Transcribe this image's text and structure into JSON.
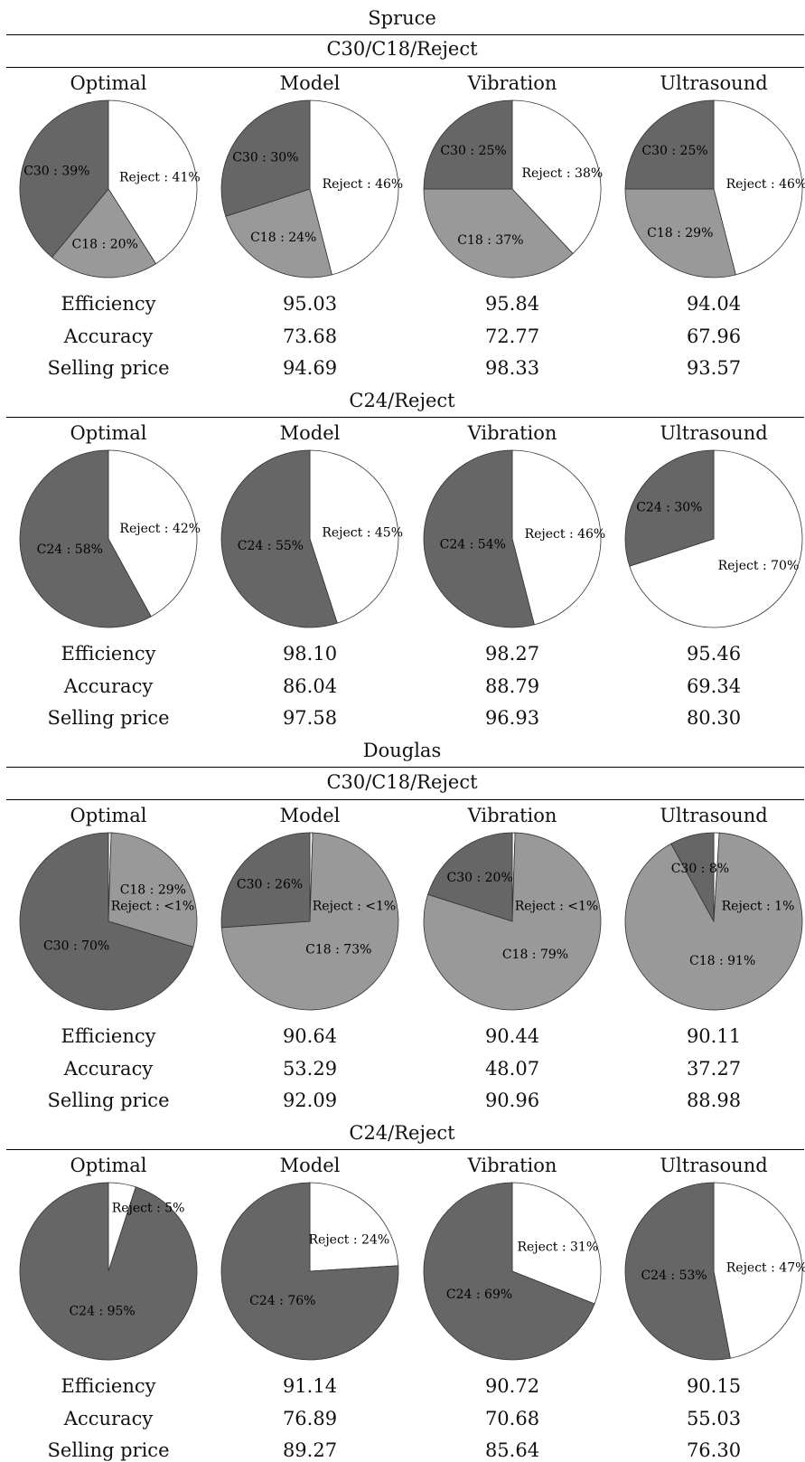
{
  "colors": {
    "C30": "#666666",
    "C24": "#666666",
    "C18": "#999999",
    "Reject": "#ffffff",
    "edge": "#333333"
  },
  "blocks": [
    {
      "species": "Spruce",
      "groups": [
        {
          "title": "C30/C18/Reject",
          "methods": [
            "Optimal",
            "Model",
            "Vibration",
            "Ultrasound"
          ],
          "metric_labels": [
            "Efficiency",
            "Accuracy",
            "Selling price"
          ],
          "metrics": [
            [
              "95.03",
              "95.84",
              "94.04"
            ],
            [
              "73.68",
              "72.77",
              "67.96"
            ],
            [
              "94.69",
              "98.33",
              "93.57"
            ]
          ]
        },
        {
          "title": "C24/Reject",
          "methods": [
            "Optimal",
            "Model",
            "Vibration",
            "Ultrasound"
          ],
          "metric_labels": [
            "Efficiency",
            "Accuracy",
            "Selling price"
          ],
          "metrics": [
            [
              "98.10",
              "98.27",
              "95.46"
            ],
            [
              "86.04",
              "88.79",
              "69.34"
            ],
            [
              "97.58",
              "96.93",
              "80.30"
            ]
          ]
        }
      ]
    },
    {
      "species": "Douglas",
      "groups": [
        {
          "title": "C30/C18/Reject",
          "methods": [
            "Optimal",
            "Model",
            "Vibration",
            "Ultrasound"
          ],
          "metric_labels": [
            "Efficiency",
            "Accuracy",
            "Selling price"
          ],
          "metrics": [
            [
              "90.64",
              "90.44",
              "90.11"
            ],
            [
              "53.29",
              "48.07",
              "37.27"
            ],
            [
              "92.09",
              "90.96",
              "88.98"
            ]
          ]
        },
        {
          "title": "C24/Reject",
          "methods": [
            "Optimal",
            "Model",
            "Vibration",
            "Ultrasound"
          ],
          "metric_labels": [
            "Efficiency",
            "Accuracy",
            "Selling price"
          ],
          "metrics": [
            [
              "91.14",
              "90.72",
              "90.15"
            ],
            [
              "76.89",
              "70.68",
              "55.03"
            ],
            [
              "89.27",
              "85.64",
              "76.30"
            ]
          ]
        }
      ]
    }
  ],
  "chart_data": [
    {
      "type": "pie",
      "series": [
        {
          "name": "Spruce C30/C18/Reject Optimal",
          "labels": [
            "Reject : 41%",
            "C18 : 20%",
            "C30 : 39%"
          ],
          "values": [
            41,
            20,
            39
          ]
        },
        {
          "name": "Spruce C30/C18/Reject Model",
          "labels": [
            "Reject : 46%",
            "C18 : 24%",
            "C30 : 30%"
          ],
          "values": [
            46,
            24,
            30
          ]
        },
        {
          "name": "Spruce C30/C18/Reject Vibration",
          "labels": [
            "Reject : 38%",
            "C18 : 37%",
            "C30 : 25%"
          ],
          "values": [
            38,
            37,
            25
          ]
        },
        {
          "name": "Spruce C30/C18/Reject Ultrasound",
          "labels": [
            "Reject : 46%",
            "C18 : 29%",
            "C30 : 25%"
          ],
          "values": [
            46,
            29,
            25
          ]
        }
      ]
    },
    {
      "type": "pie",
      "series": [
        {
          "name": "Spruce C24/Reject Optimal",
          "labels": [
            "Reject : 42%",
            "C24 : 58%"
          ],
          "values": [
            42,
            58
          ]
        },
        {
          "name": "Spruce C24/Reject Model",
          "labels": [
            "Reject : 45%",
            "C24 : 55%"
          ],
          "values": [
            45,
            55
          ]
        },
        {
          "name": "Spruce C24/Reject Vibration",
          "labels": [
            "Reject : 46%",
            "C24 : 54%"
          ],
          "values": [
            46,
            54
          ]
        },
        {
          "name": "Spruce C24/Reject Ultrasound",
          "labels": [
            "Reject : 70%",
            "C24 : 30%"
          ],
          "values": [
            70,
            30
          ]
        }
      ]
    },
    {
      "type": "pie",
      "series": [
        {
          "name": "Douglas C30/C18/Reject Optimal",
          "labels": [
            "Reject : <1%",
            "C18 : 29%",
            "C30 : 70%"
          ],
          "values": [
            0.5,
            29,
            70
          ]
        },
        {
          "name": "Douglas C30/C18/Reject Model",
          "labels": [
            "Reject : <1%",
            "C18 : 73%",
            "C30 : 26%"
          ],
          "values": [
            0.5,
            73,
            26
          ]
        },
        {
          "name": "Douglas C30/C18/Reject Vibration",
          "labels": [
            "Reject : <1%",
            "C18 : 79%",
            "C30 : 20%"
          ],
          "values": [
            0.5,
            79,
            20
          ]
        },
        {
          "name": "Douglas C30/C18/Reject Ultrasound",
          "labels": [
            "Reject : 1%",
            "C18 : 91%",
            "C30 : 8%"
          ],
          "values": [
            1,
            91,
            8
          ]
        }
      ]
    },
    {
      "type": "pie",
      "series": [
        {
          "name": "Douglas C24/Reject Optimal",
          "labels": [
            "Reject : 5%",
            "C24 : 95%"
          ],
          "values": [
            5,
            95
          ]
        },
        {
          "name": "Douglas C24/Reject Model",
          "labels": [
            "Reject : 24%",
            "C24 : 76%"
          ],
          "values": [
            24,
            76
          ]
        },
        {
          "name": "Douglas C24/Reject Vibration",
          "labels": [
            "Reject : 31%",
            "C24 : 69%"
          ],
          "values": [
            31,
            69
          ]
        },
        {
          "name": "Douglas C24/Reject Ultrasound",
          "labels": [
            "Reject : 47%",
            "C24 : 53%"
          ],
          "values": [
            47,
            53
          ]
        }
      ]
    }
  ]
}
